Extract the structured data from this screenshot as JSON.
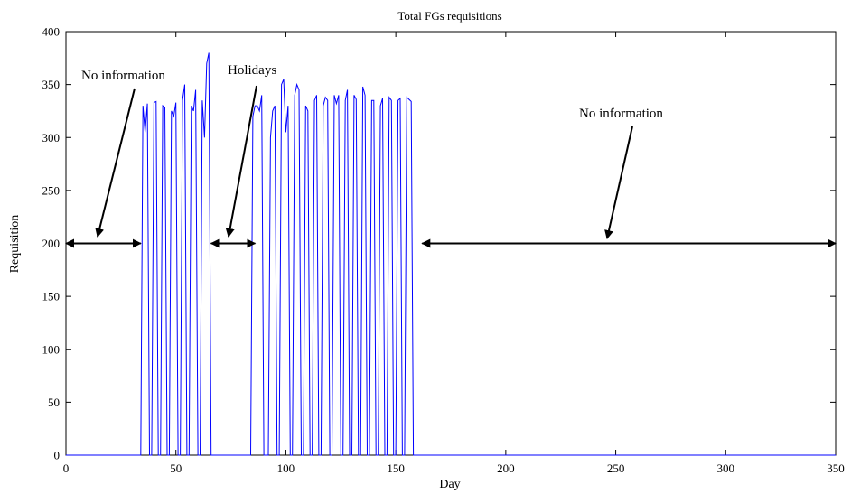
{
  "chart_data": {
    "type": "line",
    "title": "Total FGs requisitions",
    "xlabel": "Day",
    "ylabel": "Requisition",
    "xlim": [
      0,
      350
    ],
    "ylim": [
      0,
      400
    ],
    "xticks": [
      0,
      50,
      100,
      150,
      200,
      250,
      300,
      350
    ],
    "yticks": [
      0,
      50,
      100,
      150,
      200,
      250,
      300,
      350,
      400
    ],
    "grid": false,
    "line_color": "#0000ff",
    "series": [
      {
        "x": [
          0,
          34,
          35,
          36,
          37,
          38,
          39,
          40,
          41,
          42,
          43,
          44,
          45,
          46,
          47,
          48,
          49,
          50,
          51,
          52,
          53,
          54,
          55,
          56,
          57,
          58,
          59,
          60,
          61,
          62,
          63,
          64,
          65,
          66,
          67,
          68,
          69,
          84,
          85,
          86,
          87,
          88,
          89,
          90,
          91,
          92,
          93,
          94,
          95,
          96,
          97,
          98,
          99,
          100,
          101,
          102,
          103,
          104,
          105,
          106,
          107,
          108,
          109,
          110,
          111,
          112,
          113,
          114,
          115,
          116,
          117,
          118,
          119,
          120,
          121,
          122,
          123,
          124,
          125,
          126,
          127,
          128,
          129,
          130,
          131,
          132,
          133,
          134,
          135,
          136,
          137,
          138,
          139,
          140,
          141,
          142,
          143,
          144,
          145,
          146,
          147,
          148,
          149,
          150,
          151,
          152,
          153,
          154,
          155,
          156,
          157,
          158,
          159,
          160,
          161,
          350
        ],
        "values": [
          0,
          0,
          330,
          305,
          332,
          0,
          0,
          333,
          334,
          0,
          0,
          330,
          328,
          0,
          0,
          325,
          320,
          333,
          0,
          0,
          335,
          350,
          0,
          0,
          330,
          325,
          345,
          0,
          0,
          335,
          300,
          370,
          380,
          0,
          0,
          0,
          0,
          0,
          320,
          330,
          330,
          325,
          340,
          0,
          0,
          0,
          300,
          325,
          330,
          0,
          0,
          350,
          355,
          305,
          330,
          0,
          0,
          340,
          350,
          345,
          0,
          0,
          330,
          325,
          0,
          0,
          335,
          340,
          0,
          0,
          330,
          338,
          335,
          0,
          0,
          340,
          332,
          340,
          0,
          0,
          335,
          345,
          0,
          0,
          340,
          336,
          0,
          0,
          348,
          340,
          0,
          0,
          335,
          335,
          0,
          0,
          330,
          337,
          0,
          0,
          338,
          335,
          0,
          0,
          335,
          337,
          0,
          0,
          338,
          336,
          334,
          0,
          0,
          0,
          0,
          0
        ]
      }
    ],
    "annotations": [
      {
        "text": "No information",
        "span": [
          0,
          34
        ],
        "y": 200
      },
      {
        "text": "Holidays",
        "span": [
          66,
          86
        ],
        "y": 200
      },
      {
        "text": "No information",
        "span": [
          162,
          350
        ],
        "y": 200
      }
    ]
  }
}
